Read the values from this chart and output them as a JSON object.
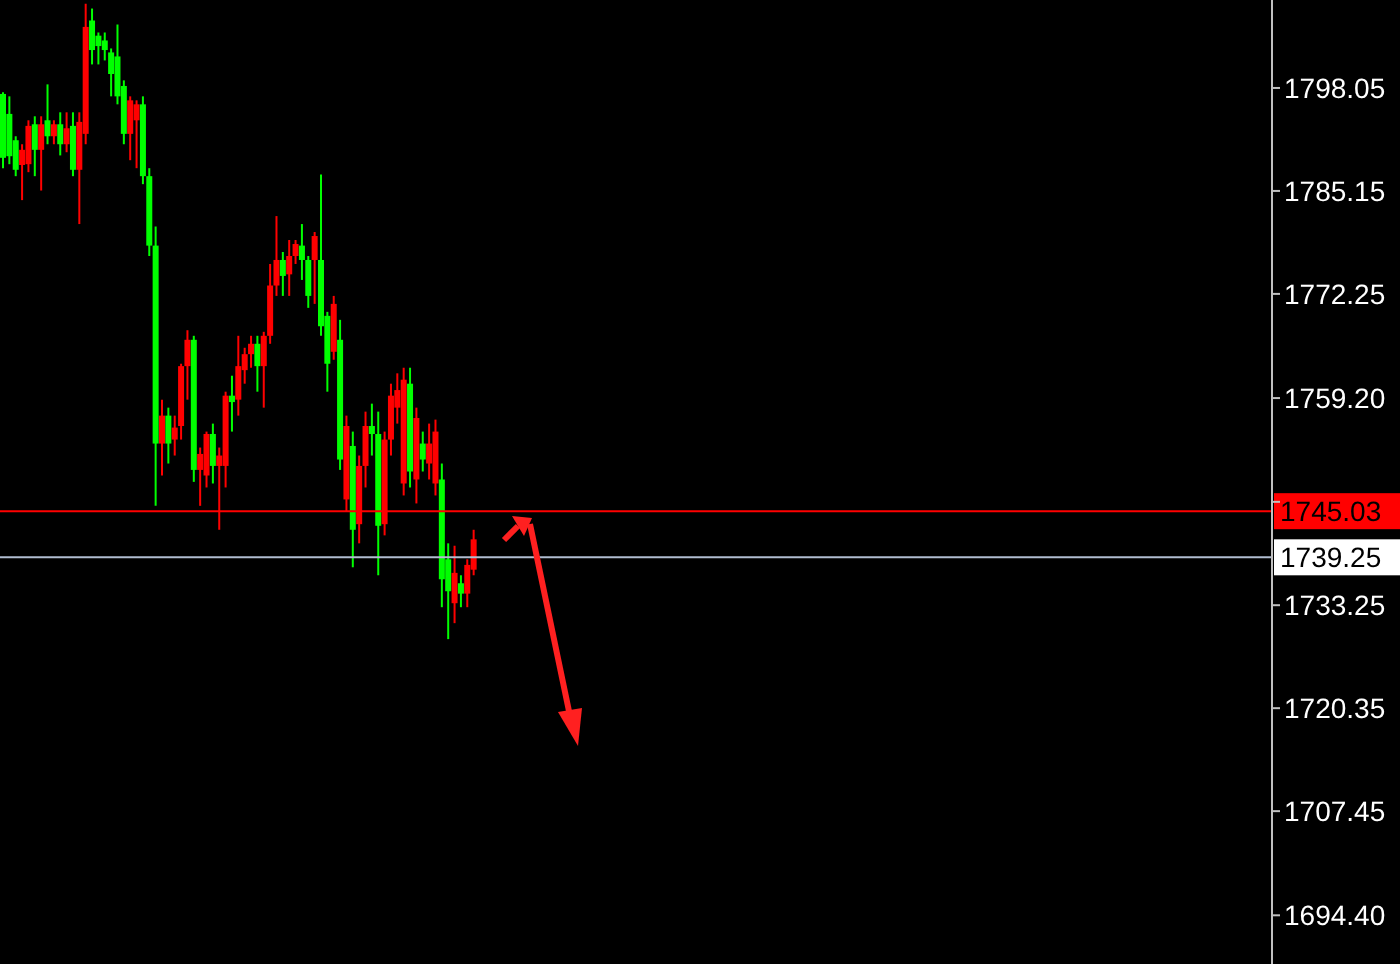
{
  "chart_data": {
    "type": "candlestick",
    "categories": [
      null,
      null,
      null,
      null,
      null,
      null,
      null,
      null,
      null,
      null,
      null,
      null,
      null,
      null,
      null,
      null,
      null,
      null,
      null,
      null,
      null,
      null,
      null,
      null,
      null,
      null,
      null,
      null,
      null,
      null,
      null,
      null,
      null,
      null,
      null,
      null,
      null,
      null,
      null,
      null,
      null,
      null,
      null,
      null,
      null,
      null,
      null,
      null,
      null,
      null,
      null,
      null,
      null,
      null,
      null,
      null,
      null,
      null,
      null,
      null,
      null,
      null,
      null,
      null,
      null,
      null,
      null,
      null,
      null,
      null,
      null,
      null,
      null,
      null,
      null,
      null,
      null,
      null,
      null,
      null,
      null,
      null,
      null,
      null,
      null,
      null,
      null,
      null,
      null,
      null,
      null,
      null,
      null,
      null,
      null,
      null,
      null,
      null,
      null,
      null,
      null,
      null,
      null,
      null,
      null,
      null,
      null,
      null,
      null,
      null,
      null,
      null,
      null,
      null,
      null,
      null,
      null,
      null,
      null,
      null,
      null,
      null,
      null,
      null,
      null,
      null,
      null,
      null,
      null,
      null,
      null,
      null,
      null,
      null,
      null,
      null,
      null,
      null,
      null,
      null,
      null,
      null,
      null,
      null,
      null,
      null,
      null,
      null,
      null,
      null,
      null,
      null,
      null,
      null,
      null,
      null,
      null,
      null,
      null,
      null,
      null,
      null,
      null,
      null,
      null,
      null,
      null,
      null,
      null,
      null,
      null,
      null,
      null,
      null,
      null,
      null,
      null,
      null,
      null,
      null,
      null,
      null,
      null,
      null,
      null,
      null,
      null,
      null,
      null,
      null,
      null,
      null,
      null,
      null,
      null,
      null,
      null,
      null,
      null,
      null
    ],
    "ohlc": [
      [
        1797.3,
        1797.5,
        1788,
        1789.3
      ],
      [
        1794.8,
        1797,
        1788.5,
        1789.5
      ],
      [
        1791.5,
        1792,
        1787,
        1787.8
      ],
      [
        1788.4,
        1791,
        1784,
        1790.3
      ],
      [
        1788.5,
        1794,
        1787.5,
        1793.3
      ],
      [
        1793.5,
        1794.5,
        1787,
        1790.3
      ],
      [
        1790.3,
        1794.5,
        1785.2,
        1793.5
      ],
      [
        1794,
        1798.5,
        1791,
        1792
      ],
      [
        1792,
        1794,
        1791,
        1793.5
      ],
      [
        1793.5,
        1795,
        1789.6,
        1791
      ],
      [
        1791,
        1795,
        1790,
        1793
      ],
      [
        1793.3,
        1795,
        1787,
        1787.8
      ],
      [
        1787.8,
        1795,
        1781,
        1793.8
      ],
      [
        1792.3,
        1808.6,
        1791,
        1805.7
      ],
      [
        1806.5,
        1808,
        1801,
        1802.8
      ],
      [
        1804.6,
        1805,
        1801,
        1803.3
      ],
      [
        1804,
        1805,
        1801.5,
        1802.8
      ],
      [
        1802.5,
        1803,
        1797,
        1799.8
      ],
      [
        1802,
        1806,
        1796,
        1797
      ],
      [
        1798.3,
        1799,
        1791,
        1792.3
      ],
      [
        1792.3,
        1797,
        1789,
        1796.5
      ],
      [
        1794,
        1796.5,
        1788,
        1796
      ],
      [
        1796,
        1797,
        1786,
        1787
      ],
      [
        1787,
        1788,
        1777,
        1778.3
      ],
      [
        1778.3,
        1780.7,
        1745.7,
        1753.5
      ],
      [
        1753.5,
        1759,
        1749.5,
        1757
      ],
      [
        1757,
        1758,
        1751,
        1753.5
      ],
      [
        1754,
        1757,
        1752,
        1755.5
      ],
      [
        1755.7,
        1763.5,
        1754,
        1763.2
      ],
      [
        1763.2,
        1767.7,
        1759,
        1766.5
      ],
      [
        1766.5,
        1767,
        1748.7,
        1750.2
      ],
      [
        1750.2,
        1753,
        1745.7,
        1752.2
      ],
      [
        1749.5,
        1755,
        1748,
        1754.7
      ],
      [
        1754.7,
        1756,
        1748.5,
        1750.7
      ],
      [
        1750.7,
        1753,
        1742.7,
        1752
      ],
      [
        1750.7,
        1760,
        1748,
        1759.5
      ],
      [
        1759.5,
        1762,
        1755,
        1758.7
      ],
      [
        1759,
        1767,
        1757,
        1763.2
      ],
      [
        1762.7,
        1765.5,
        1761,
        1764.7
      ],
      [
        1764.7,
        1767,
        1763,
        1766
      ],
      [
        1766,
        1767,
        1760,
        1763.2
      ],
      [
        1763.2,
        1767.5,
        1758,
        1767
      ],
      [
        1767,
        1776,
        1766,
        1773.3
      ],
      [
        1773.3,
        1782,
        1772,
        1776.5
      ],
      [
        1776.5,
        1777.5,
        1772,
        1774.5
      ],
      [
        1774.7,
        1779,
        1772,
        1777
      ],
      [
        1777,
        1779,
        1776,
        1778.5
      ],
      [
        1778.3,
        1781,
        1774,
        1776.5
      ],
      [
        1776.5,
        1777,
        1770.5,
        1772
      ],
      [
        1776.5,
        1780,
        1771,
        1779.5
      ],
      [
        1776.5,
        1787.2,
        1767,
        1768.2
      ],
      [
        1769.5,
        1770,
        1760,
        1763.5
      ],
      [
        1765,
        1772,
        1764,
        1771
      ],
      [
        1766.5,
        1769,
        1750.2,
        1751.5
      ],
      [
        1746.5,
        1757,
        1745,
        1755.7
      ],
      [
        1753.2,
        1755,
        1738,
        1742.7
      ],
      [
        1743.4,
        1752,
        1741,
        1750.7
      ],
      [
        1750.7,
        1757.5,
        1748,
        1755.7
      ],
      [
        1755.7,
        1758.5,
        1752,
        1754.7
      ],
      [
        1754.7,
        1757.5,
        1737,
        1743.2
      ],
      [
        1743.4,
        1755,
        1742,
        1754
      ],
      [
        1754,
        1761,
        1752,
        1759.5
      ],
      [
        1758,
        1762.3,
        1756,
        1760.2
      ],
      [
        1748.5,
        1763,
        1747,
        1761.5
      ],
      [
        1761,
        1763,
        1748,
        1750
      ],
      [
        1749,
        1758,
        1746,
        1756.7
      ],
      [
        1753.5,
        1755,
        1750,
        1751.5
      ],
      [
        1751,
        1756,
        1749,
        1753.5
      ],
      [
        1748.5,
        1756.5,
        1747,
        1755
      ],
      [
        1749,
        1751,
        1733,
        1736.5
      ],
      [
        1739,
        1741,
        1729,
        1735
      ],
      [
        1733.5,
        1740.7,
        1731,
        1737.3
      ],
      [
        1736,
        1737,
        1733,
        1734.7
      ],
      [
        1734.7,
        1739,
        1733,
        1738.3
      ],
      [
        1737.7,
        1742.7,
        1737,
        1741.5
      ],
      null,
      null,
      null,
      null,
      null,
      null,
      null,
      null,
      null,
      null,
      null,
      null,
      null,
      null,
      null,
      null,
      null,
      null,
      null,
      null,
      null,
      null,
      null,
      null,
      null,
      null,
      null,
      null,
      null,
      null,
      null,
      null,
      null,
      null,
      null,
      null,
      null,
      null,
      null,
      null,
      null,
      null,
      null,
      null,
      null,
      null,
      null,
      null,
      null,
      null,
      null,
      null,
      null,
      null,
      null,
      null,
      null,
      null,
      null,
      null,
      null,
      null,
      null,
      null,
      null,
      null,
      null,
      null,
      null,
      null,
      null,
      null,
      null,
      null,
      null,
      null,
      null,
      null,
      null,
      null,
      null,
      null,
      null,
      null,
      null,
      null,
      null,
      null,
      null,
      null,
      null,
      null,
      null,
      null,
      null,
      null,
      null,
      null,
      null,
      null,
      null,
      null,
      null,
      null,
      null,
      null,
      null,
      null,
      null,
      null,
      null,
      null,
      null,
      null,
      null,
      null,
      null,
      null,
      null,
      null,
      null,
      null,
      null,
      null,
      null
    ],
    "colors": [
      "#00ff00",
      "#00ff00",
      "#00ff00",
      "#ff0000",
      "#ff0000",
      "#00ff00",
      "#ff0000",
      "#00ff00",
      "#ff0000",
      "#00ff00",
      "#ff0000",
      "#00ff00",
      "#ff0000",
      "#ff0000",
      "#00ff00",
      "#00ff00",
      "#00ff00",
      "#00ff00",
      "#00ff00",
      "#00ff00",
      "#ff0000",
      "#ff0000",
      "#00ff00",
      "#00ff00",
      "#00ff00",
      "#ff0000",
      "#00ff00",
      "#ff0000",
      "#ff0000",
      "#ff0000",
      "#00ff00",
      "#ff0000",
      "#ff0000",
      "#00ff00",
      "#ff0000",
      "#ff0000",
      "#00ff00",
      "#ff0000",
      "#ff0000",
      "#ff0000",
      "#00ff00",
      "#ff0000",
      "#ff0000",
      "#ff0000",
      "#00ff00",
      "#ff0000",
      "#ff0000",
      "#00ff00",
      "#00ff00",
      "#ff0000",
      "#00ff00",
      "#00ff00",
      "#ff0000",
      "#00ff00",
      "#ff0000",
      "#00ff00",
      "#ff0000",
      "#ff0000",
      "#00ff00",
      "#00ff00",
      "#ff0000",
      "#ff0000",
      "#ff0000",
      "#ff0000",
      "#00ff00",
      "#ff0000",
      "#00ff00",
      "#ff0000",
      "#ff0000",
      "#00ff00",
      "#00ff00",
      "#ff0000",
      "#00ff00",
      "#ff0000",
      "#ff0000",
      null,
      null,
      null,
      null,
      null,
      null,
      null,
      null,
      null,
      null,
      null,
      null,
      null,
      null,
      null,
      null,
      null,
      null,
      null,
      null,
      null,
      null,
      null,
      null,
      null,
      null,
      null,
      null,
      null,
      null,
      null,
      null,
      null,
      null,
      null,
      null,
      null,
      null,
      null,
      null,
      null,
      null,
      null,
      null,
      null,
      null,
      null,
      null,
      null,
      null,
      null,
      null,
      null,
      null,
      null,
      null,
      null,
      null,
      null,
      null,
      null,
      null,
      null,
      null,
      null,
      null,
      null,
      null,
      null,
      null,
      null,
      null,
      null,
      null,
      null,
      null,
      null,
      null,
      null,
      null,
      null,
      null,
      null,
      null,
      null,
      null,
      null,
      null,
      null,
      null,
      null,
      null,
      null,
      null,
      null,
      null,
      null,
      null,
      null,
      null,
      null,
      null,
      null,
      null,
      null,
      null,
      null,
      null,
      null,
      null,
      null,
      null,
      null,
      null,
      null,
      null,
      null,
      null,
      null,
      null,
      null,
      null,
      null,
      null,
      null
    ],
    "ylim": [
      1688.3,
      1809.07
    ],
    "yticks": [
      1798.05,
      1785.15,
      1772.25,
      {
        "value": 1759.2,
        "label": "1759.20"
      },
      {
        "value": 1746.2,
        "label": null
      },
      1733.25,
      1720.35,
      1707.45,
      {
        "value": 1694.4,
        "label": "1694.40"
      }
    ],
    "tick_labels": "y",
    "grid": false,
    "ref_lines": [
      {
        "axis": "y",
        "value": 1745.03,
        "label": "1745.03",
        "color": "#ff0000"
      },
      {
        "axis": "y",
        "value": 1739.25,
        "label": "1739.25",
        "color": "#b0bcd0"
      }
    ]
  }
}
